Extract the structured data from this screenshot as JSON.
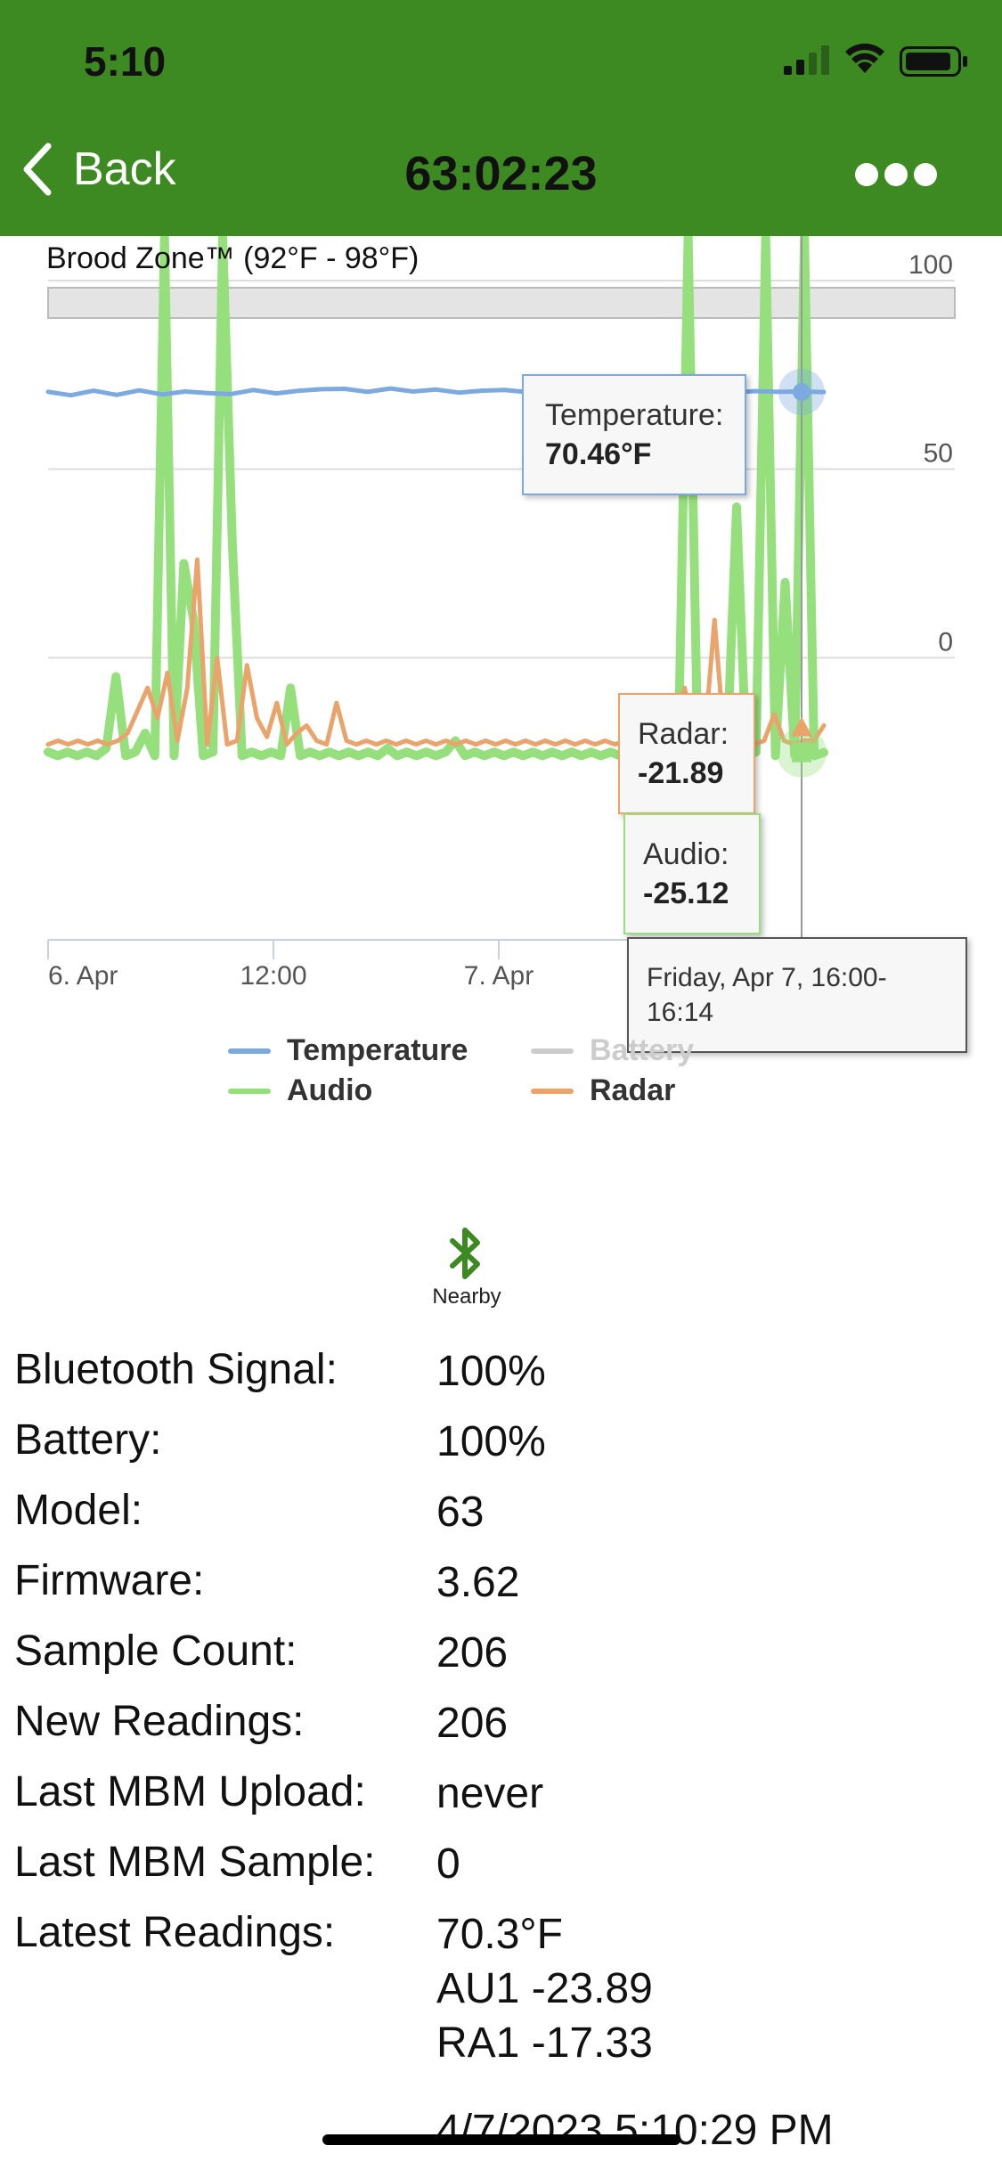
{
  "status_bar": {
    "time": "5:10"
  },
  "nav": {
    "back_label": "Back",
    "title": "63:02:23"
  },
  "chart_data": {
    "type": "line",
    "title": "Brood Zone™ (92°F - 98°F)",
    "ylim": [
      -50,
      100
    ],
    "y_ticks": [
      "100",
      "50",
      "0"
    ],
    "x_ticks": [
      "6. Apr",
      "12:00",
      "7. Apr"
    ],
    "band": {
      "label": "Brood Zone™",
      "range": [
        92,
        98
      ]
    },
    "series": [
      {
        "name": "Temperature",
        "color": "#7ba9e0",
        "visible": true,
        "values": [
          70.5,
          69.6,
          70.8,
          69.7,
          70.9,
          69.8,
          70.6,
          70.2,
          69.9,
          71.0,
          70.1,
          70.8,
          71.2,
          71.3,
          70.5,
          71.4,
          70.6,
          71.1,
          70.3,
          70.8,
          71.0,
          70.4,
          70.9,
          70.2,
          70.7,
          70.0,
          70.6,
          70.9,
          70.4,
          70.8,
          70.3,
          70.7,
          70.5,
          70.6,
          70.46
        ]
      },
      {
        "name": "Battery",
        "color": "#cccccc",
        "visible": false,
        "values": []
      },
      {
        "name": "Audio",
        "color": "#95e07d",
        "visible": true,
        "values": [
          -25,
          -26,
          -25,
          -26,
          -25,
          -26,
          -24,
          -5,
          -26,
          -25,
          -20,
          -26,
          130,
          -26,
          25,
          10,
          -26,
          -25,
          150,
          30,
          -26,
          -25,
          -26,
          -25,
          -26,
          -8,
          -26,
          -25,
          -26,
          -25,
          -26,
          -25,
          -26,
          -25,
          -26,
          -24,
          -26,
          -25,
          -26,
          -25,
          -26,
          -25,
          -22,
          -26,
          -25,
          -26,
          -25,
          -26,
          -25,
          -26,
          -25,
          -26,
          -25,
          -26,
          -25,
          -26,
          -25,
          -26,
          -25,
          -26,
          -25,
          -26,
          -25,
          -26,
          -25,
          -24,
          140,
          -26,
          -25,
          -20,
          -26,
          40,
          -26,
          -25,
          150,
          -26,
          20,
          -26,
          150,
          -26,
          -25.12
        ]
      },
      {
        "name": "Radar",
        "color": "#eba36c",
        "visible": true,
        "values": [
          -23,
          -22,
          -23,
          -22,
          -23,
          -22,
          -23,
          -22,
          -20,
          -14,
          -8,
          -16,
          -4,
          -22,
          -8,
          26,
          -23,
          0,
          -23,
          -22,
          -2,
          -16,
          -21,
          -12,
          -23,
          -20,
          -18,
          -22,
          -23,
          -12,
          -22,
          -23,
          -22,
          -23,
          -22,
          -23,
          -22,
          -23,
          -22,
          -23,
          -22,
          -23,
          -22,
          -23,
          -22,
          -23,
          -22,
          -23,
          -22,
          -23,
          -22,
          -23,
          -22,
          -23,
          -22,
          -23,
          -22,
          -23,
          -22,
          -23,
          -22,
          -18,
          -23,
          -22,
          -8,
          -23,
          -22,
          10,
          -22,
          -18,
          -22,
          -23,
          -22,
          -15,
          -22,
          -23,
          -21.89,
          -22,
          -18
        ]
      }
    ],
    "tooltips": {
      "temperature_label": "Temperature:",
      "temperature_value": "70.46°F",
      "radar_label": "Radar:",
      "radar_value": "-21.89",
      "audio_label": "Audio:",
      "audio_value": "-25.12",
      "date": "Friday, Apr 7, 16:00-16:14"
    },
    "legend": [
      "Temperature",
      "Battery",
      "Audio",
      "Radar"
    ],
    "legend_placement": "bottom"
  },
  "bluetooth": {
    "label": "Nearby"
  },
  "details": [
    {
      "label": "Bluetooth Signal:",
      "value": "100%"
    },
    {
      "label": "Battery:",
      "value": "100%"
    },
    {
      "label": "Model:",
      "value": "63"
    },
    {
      "label": "Firmware:",
      "value": "3.62"
    },
    {
      "label": "Sample Count:",
      "value": "206"
    },
    {
      "label": "New Readings:",
      "value": "206"
    },
    {
      "label": "Last MBM Upload:",
      "value": "never"
    },
    {
      "label": "Last MBM Sample:",
      "value": "0"
    },
    {
      "label": "Latest Readings:",
      "value": "70.3°F"
    }
  ],
  "latest_readings_extra": [
    "AU1 -23.89",
    "RA1 -17.33"
  ],
  "timestamp": "4/7/2023 5:10:29 PM"
}
